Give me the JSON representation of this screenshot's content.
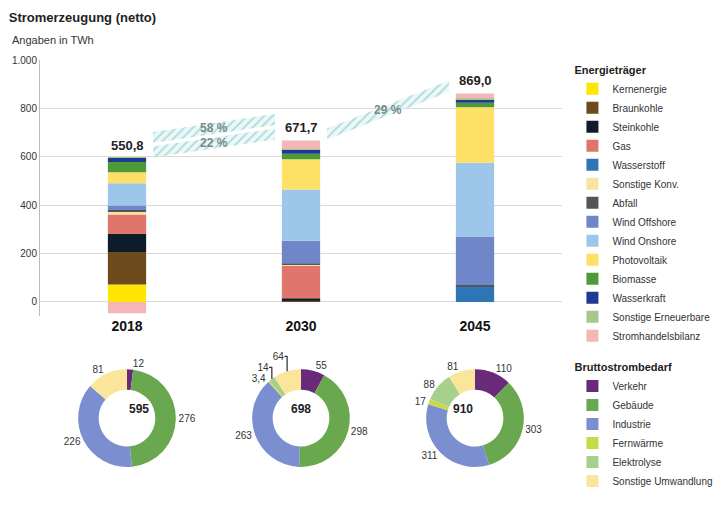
{
  "chart_data": [
    {
      "type": "bar",
      "title": "Stromerzeugung (netto)",
      "subtitle": "Angaben in TWh",
      "legend_title": "Energieträger",
      "legend": "right",
      "stacked": true,
      "grid": true,
      "categories": [
        "2018",
        "2030",
        "2045"
      ],
      "ylim": [
        -60,
        1000
      ],
      "yticks": [
        0,
        200,
        400,
        600,
        800,
        {
          "value": 1000,
          "label": "1.000"
        }
      ],
      "totals": [
        550.8,
        671.7,
        869.0
      ],
      "total_labels": [
        "550,8",
        "671,7",
        "869,0"
      ],
      "annotations": [
        "22 %",
        "58 %",
        "29 %"
      ],
      "series": [
        {
          "name": "Kernenergie",
          "color": "#ffe600",
          "values": [
            72,
            0,
            0
          ]
        },
        {
          "name": "Braunkohle",
          "color": "#6b4a1b",
          "values": [
            134,
            5,
            0
          ]
        },
        {
          "name": "Steinkohle",
          "color": "#0d1b2a",
          "values": [
            75,
            10,
            0
          ]
        },
        {
          "name": "Gas",
          "color": "#e0756b",
          "values": [
            80,
            135,
            0
          ]
        },
        {
          "name": "Wasserstoff",
          "color": "#2e75b6",
          "values": [
            0,
            0,
            65
          ]
        },
        {
          "name": "Sonstige Konv.",
          "color": "#f7e3a3",
          "values": [
            13,
            3,
            0
          ]
        },
        {
          "name": "Abfall",
          "color": "#555555",
          "values": [
            6,
            5,
            5
          ]
        },
        {
          "name": "Wind Offshore",
          "color": "#6f86c8",
          "values": [
            19,
            95,
            200
          ]
        },
        {
          "name": "Wind Onshore",
          "color": "#9cc6ea",
          "values": [
            92,
            212,
            305
          ]
        },
        {
          "name": "Photovoltaik",
          "color": "#ffe066",
          "values": [
            45,
            125,
            230
          ]
        },
        {
          "name": "Biomasse",
          "color": "#4e9a3a",
          "values": [
            42,
            22,
            18
          ]
        },
        {
          "name": "Wasserkraft",
          "color": "#1f3a93",
          "values": [
            17,
            17,
            15
          ]
        },
        {
          "name": "Sonstige Erneuerbare",
          "color": "#a6c98a",
          "values": [
            2,
            3,
            4
          ]
        },
        {
          "name": "Stromhandelsbilanz",
          "color": "#f4b6b6",
          "values": [
            -47,
            35,
            20
          ]
        }
      ]
    },
    {
      "type": "pie",
      "legend_title": "Bruttostrombedarf",
      "legend": "right",
      "total": 595,
      "categories": [
        "Verkehr",
        "Gebäude",
        "Industrie",
        "Sonstige Umwandlung"
      ],
      "values": [
        12,
        276,
        226,
        81
      ],
      "colors": [
        "#6a2a7a",
        "#6aa84f",
        "#7b8fd0",
        "#fbe59a"
      ]
    },
    {
      "type": "pie",
      "legend_title": "Bruttostrombedarf",
      "legend": "right",
      "total": 698,
      "categories": [
        "Verkehr",
        "Gebäude",
        "Industrie",
        "Fernwärme",
        "Elektrolyse",
        "Sonstige Umwandlung"
      ],
      "values": [
        55,
        298,
        263,
        3.4,
        14,
        64
      ],
      "value_labels": [
        "55",
        "298",
        "263",
        "3,4",
        "14",
        "64"
      ],
      "colors": [
        "#6a2a7a",
        "#6aa84f",
        "#7b8fd0",
        "#c8d94a",
        "#a8d08d",
        "#fbe59a"
      ]
    },
    {
      "type": "pie",
      "legend_title": "Bruttostrombedarf",
      "legend": "right",
      "total": 910,
      "categories": [
        "Verkehr",
        "Gebäude",
        "Industrie",
        "Fernwärme",
        "Elektrolyse",
        "Sonstige Umwandlung"
      ],
      "values": [
        110,
        303,
        311,
        17,
        88,
        81
      ],
      "colors": [
        "#6a2a7a",
        "#6aa84f",
        "#7b8fd0",
        "#c8d94a",
        "#a8d08d",
        "#fbe59a"
      ]
    }
  ]
}
